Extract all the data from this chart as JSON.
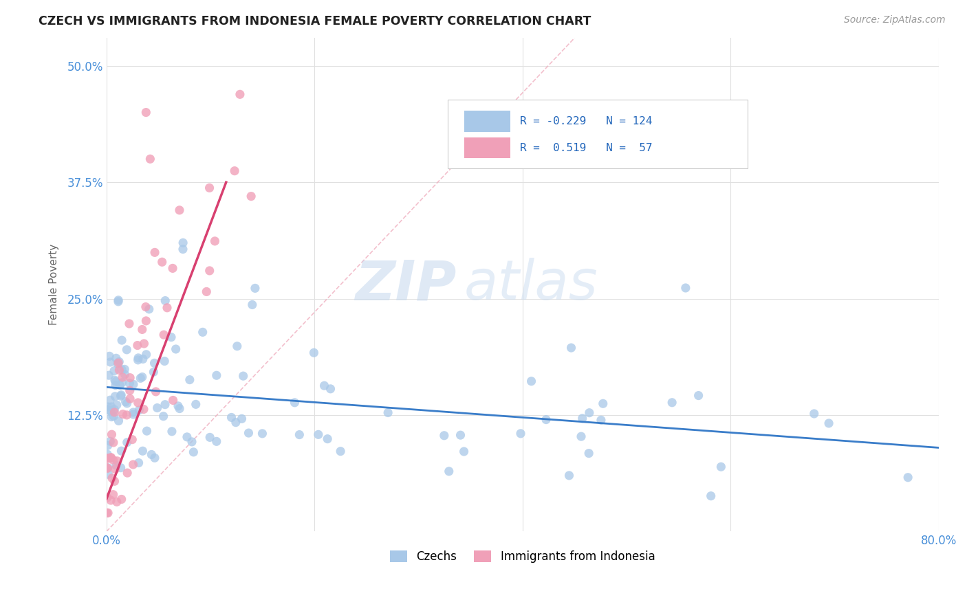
{
  "title": "CZECH VS IMMIGRANTS FROM INDONESIA FEMALE POVERTY CORRELATION CHART",
  "source": "Source: ZipAtlas.com",
  "ylabel": "Female Poverty",
  "xlim": [
    0.0,
    0.8
  ],
  "ylim": [
    0.0,
    0.53
  ],
  "R_czech": -0.229,
  "N_czech": 124,
  "R_indonesia": 0.519,
  "N_indonesia": 57,
  "color_czech": "#a8c8e8",
  "color_indonesia": "#f0a0b8",
  "color_czech_line": "#3a7dc9",
  "color_indonesia_line": "#d84070",
  "background_color": "#ffffff",
  "grid_color": "#e0e0e0",
  "legend_label_czech": "Czechs",
  "legend_label_indonesia": "Immigrants from Indonesia",
  "watermark_zip": "ZIP",
  "watermark_atlas": "atlas",
  "czech_trendline_start_y": 0.155,
  "czech_trendline_end_y": 0.09,
  "indo_trendline_x0": 0.0,
  "indo_trendline_y0": 0.035,
  "indo_trendline_x1": 0.115,
  "indo_trendline_y1": 0.375
}
